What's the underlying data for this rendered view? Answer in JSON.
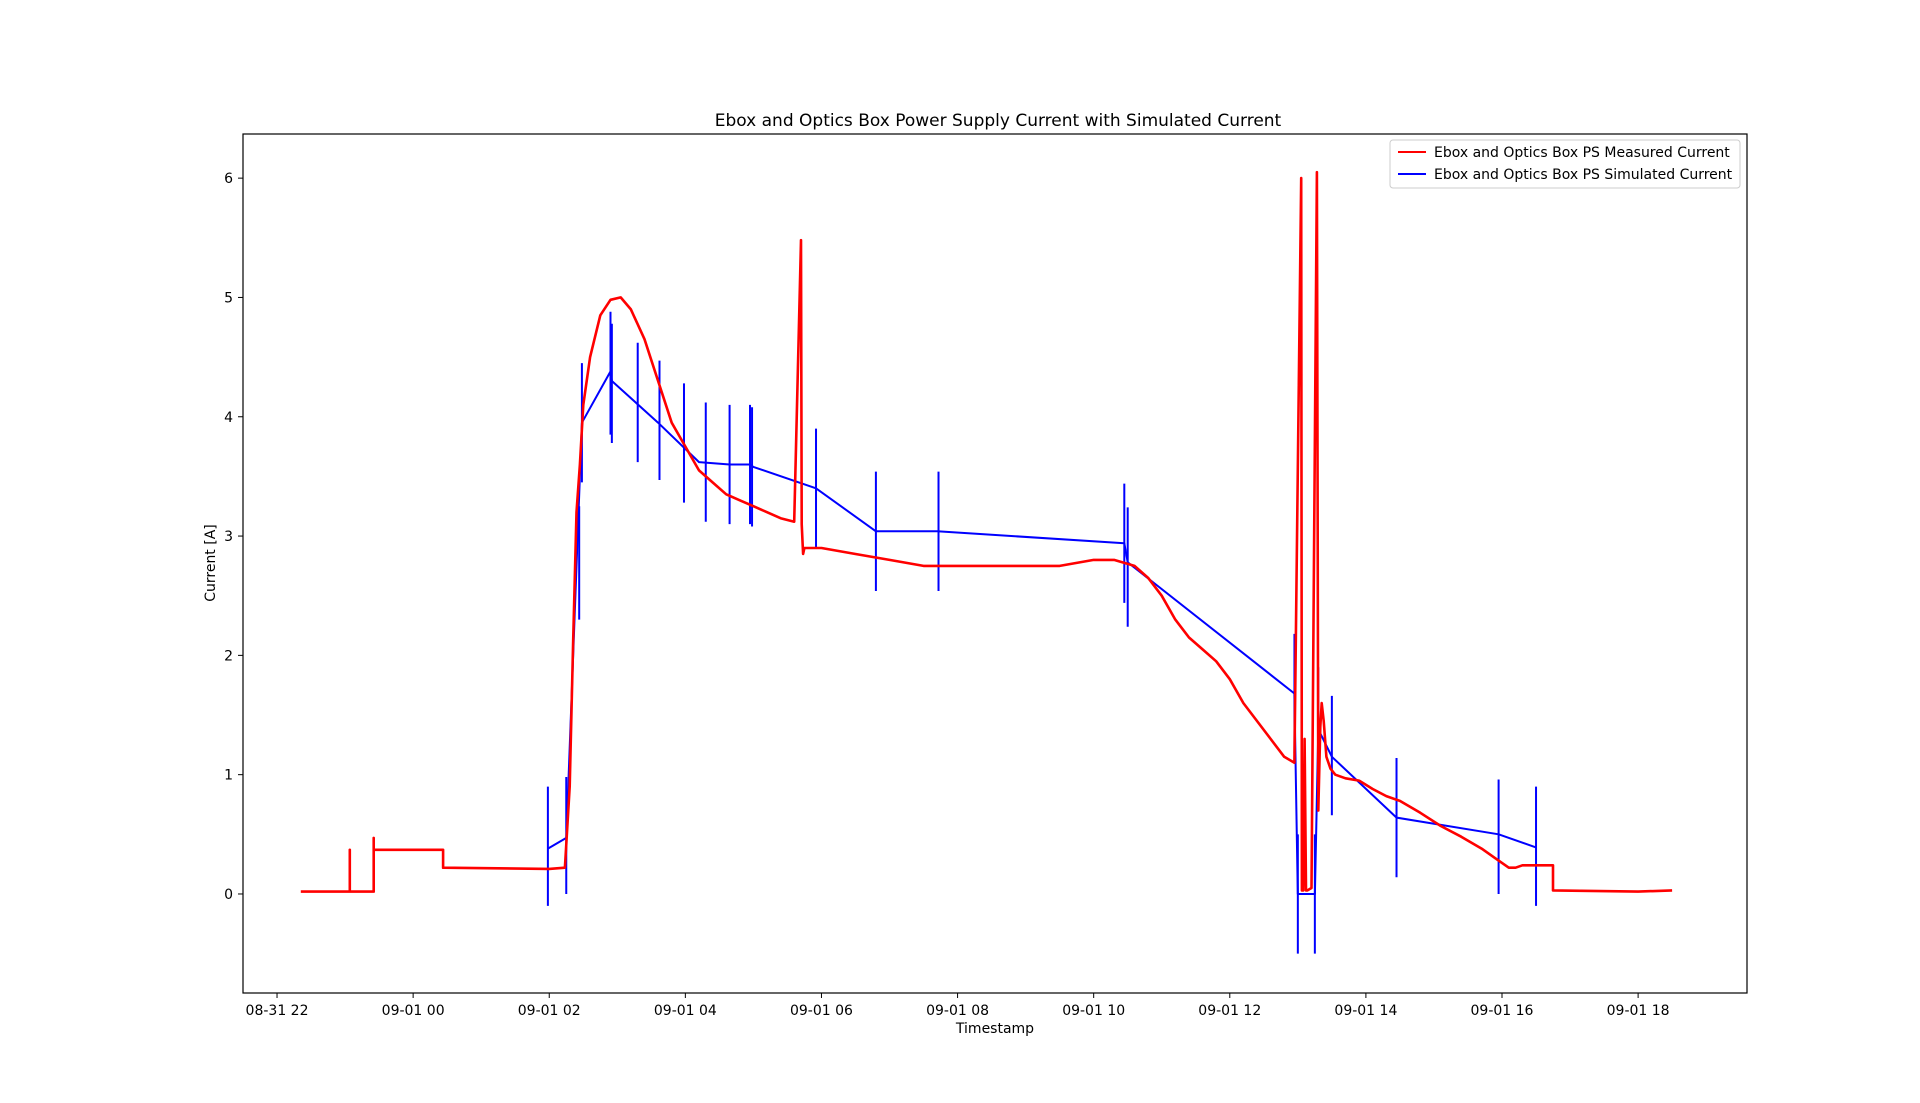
{
  "colors": {
    "measured": "#ff0000",
    "simulated": "#0000ff",
    "axes": "#000000",
    "legend_border": "#cccccc",
    "background": "#ffffff"
  },
  "chart_data": {
    "type": "line",
    "title": "Ebox and Optics Box Power Supply Current with Simulated Current",
    "xlabel": "Timestamp",
    "ylabel": "Current [A]",
    "x_unit": "hours",
    "xlim": [
      -2.5,
      19.6
    ],
    "ylim": [
      -0.83,
      6.37
    ],
    "x_ticks": [
      {
        "value": -2,
        "label": "08-31 22"
      },
      {
        "value": 0,
        "label": "09-01 00"
      },
      {
        "value": 2,
        "label": "09-01 02"
      },
      {
        "value": 4,
        "label": "09-01 04"
      },
      {
        "value": 6,
        "label": "09-01 06"
      },
      {
        "value": 8,
        "label": "09-01 08"
      },
      {
        "value": 10,
        "label": "09-01 10"
      },
      {
        "value": 12,
        "label": "09-01 12"
      },
      {
        "value": 14,
        "label": "09-01 14"
      },
      {
        "value": 16,
        "label": "09-01 16"
      },
      {
        "value": 18,
        "label": "09-01 18"
      }
    ],
    "y_ticks": [
      0,
      1,
      2,
      3,
      4,
      5,
      6
    ],
    "legend": {
      "placement": "top-right",
      "entries": [
        "Ebox and Optics Box PS Measured Current",
        "Ebox and Optics Box PS Simulated Current"
      ]
    },
    "grid": false,
    "series": [
      {
        "name": "Ebox and Optics Box PS Measured Current",
        "color": "#ff0000",
        "x": [
          -1.65,
          -0.93,
          -0.93,
          -0.93,
          -0.58,
          -0.58,
          -0.58,
          -0.55,
          -0.55,
          0.44,
          0.44,
          2.0,
          2.23,
          2.3,
          2.35,
          2.4,
          2.45,
          2.5,
          2.6,
          2.75,
          2.9,
          3.05,
          3.2,
          3.4,
          3.6,
          3.8,
          4.0,
          4.2,
          4.4,
          4.6,
          4.8,
          5.0,
          5.2,
          5.4,
          5.6,
          5.7,
          5.71,
          5.73,
          5.75,
          6.0,
          6.5,
          7.0,
          7.5,
          8.0,
          8.5,
          9.0,
          9.5,
          10.0,
          10.3,
          10.6,
          10.8,
          11.0,
          11.2,
          11.4,
          11.6,
          11.8,
          12.0,
          12.2,
          12.4,
          12.6,
          12.8,
          12.95,
          13.05,
          13.06,
          13.08,
          13.1,
          13.12,
          13.14,
          13.2,
          13.28,
          13.3,
          13.33,
          13.35,
          13.38,
          13.42,
          13.48,
          13.55,
          13.7,
          13.9,
          14.1,
          14.3,
          14.5,
          14.8,
          15.1,
          15.4,
          15.7,
          15.9,
          16.1,
          16.2,
          16.3,
          16.45,
          16.75,
          16.75,
          18.0,
          18.5
        ],
        "y": [
          0.02,
          0.02,
          0.37,
          0.02,
          0.02,
          0.47,
          0.37,
          0.37,
          0.37,
          0.37,
          0.22,
          0.21,
          0.22,
          0.9,
          2.1,
          3.2,
          3.6,
          4.1,
          4.5,
          4.85,
          4.98,
          5.0,
          4.9,
          4.65,
          4.3,
          3.95,
          3.75,
          3.55,
          3.45,
          3.35,
          3.3,
          3.25,
          3.2,
          3.15,
          3.12,
          5.48,
          3.1,
          2.85,
          2.9,
          2.9,
          2.85,
          2.8,
          2.75,
          2.75,
          2.75,
          2.75,
          2.75,
          2.8,
          2.8,
          2.75,
          2.65,
          2.5,
          2.3,
          2.15,
          2.05,
          1.95,
          1.8,
          1.6,
          1.45,
          1.3,
          1.15,
          1.1,
          6.0,
          0.03,
          0.03,
          1.3,
          0.03,
          0.03,
          0.05,
          6.05,
          0.7,
          1.4,
          1.6,
          1.45,
          1.15,
          1.05,
          1.0,
          0.97,
          0.95,
          0.88,
          0.82,
          0.78,
          0.68,
          0.57,
          0.48,
          0.38,
          0.3,
          0.22,
          0.22,
          0.24,
          0.24,
          0.24,
          0.03,
          0.02,
          0.03
        ]
      },
      {
        "name": "Ebox and Optics Box PS Simulated Current",
        "color": "#0000ff",
        "x": [
          1.98,
          2.25,
          2.48,
          2.9,
          2.92,
          3.6,
          4.2,
          4.65,
          4.95,
          5.0,
          5.92,
          6.8,
          7.7,
          10.45,
          10.5,
          12.95,
          13.0,
          13.25,
          13.3,
          13.5,
          14.45,
          15.95,
          16.5
        ],
        "y": [
          0.38,
          0.47,
          3.95,
          4.38,
          4.3,
          3.95,
          3.62,
          3.6,
          3.6,
          3.58,
          3.4,
          3.04,
          3.04,
          2.94,
          2.78,
          1.68,
          0.0,
          0.0,
          1.38,
          1.15,
          0.64,
          0.5,
          0.39
        ]
      }
    ],
    "simulated_error_bars": [
      {
        "x": 1.98,
        "low": -0.1,
        "high": 0.9
      },
      {
        "x": 2.25,
        "low": 0.0,
        "high": 0.98
      },
      {
        "x": 2.44,
        "low": 2.3,
        "high": 3.25
      },
      {
        "x": 2.48,
        "low": 3.45,
        "high": 4.45
      },
      {
        "x": 2.9,
        "low": 3.85,
        "high": 4.88
      },
      {
        "x": 2.92,
        "low": 3.78,
        "high": 4.78
      },
      {
        "x": 3.3,
        "low": 3.62,
        "high": 4.62
      },
      {
        "x": 3.62,
        "low": 3.47,
        "high": 4.47
      },
      {
        "x": 3.98,
        "low": 3.28,
        "high": 4.28
      },
      {
        "x": 4.3,
        "low": 3.12,
        "high": 4.12
      },
      {
        "x": 4.65,
        "low": 3.1,
        "high": 4.1
      },
      {
        "x": 4.95,
        "low": 3.1,
        "high": 4.1
      },
      {
        "x": 4.98,
        "low": 3.08,
        "high": 4.08
      },
      {
        "x": 5.92,
        "low": 2.9,
        "high": 3.9
      },
      {
        "x": 6.8,
        "low": 2.54,
        "high": 3.54
      },
      {
        "x": 7.72,
        "low": 2.54,
        "high": 3.54
      },
      {
        "x": 10.45,
        "low": 2.44,
        "high": 3.44
      },
      {
        "x": 10.5,
        "low": 2.24,
        "high": 3.24
      },
      {
        "x": 12.95,
        "low": 1.18,
        "high": 2.18
      },
      {
        "x": 13.0,
        "low": -0.5,
        "high": 0.5
      },
      {
        "x": 13.25,
        "low": -0.5,
        "high": 0.5
      },
      {
        "x": 13.3,
        "low": 0.88,
        "high": 1.9
      },
      {
        "x": 13.5,
        "low": 0.66,
        "high": 1.66
      },
      {
        "x": 14.45,
        "low": 0.14,
        "high": 1.14
      },
      {
        "x": 15.95,
        "low": 0.0,
        "high": 0.96
      },
      {
        "x": 16.5,
        "low": -0.1,
        "high": 0.9
      }
    ]
  }
}
